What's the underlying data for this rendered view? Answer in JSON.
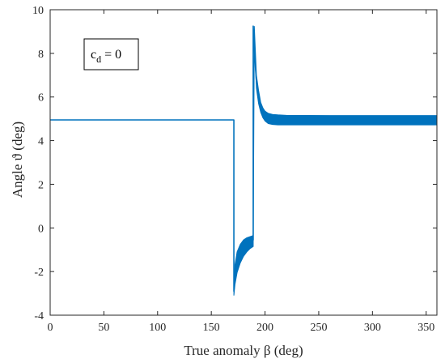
{
  "chart_data": {
    "type": "line",
    "xlabel": "True anomaly β (deg)",
    "ylabel": "Angle ϑ (deg)",
    "xlim": [
      0,
      360
    ],
    "ylim": [
      -4,
      10
    ],
    "xticks": [
      0,
      50,
      100,
      150,
      200,
      250,
      300,
      350
    ],
    "yticks": [
      -4,
      -2,
      0,
      2,
      4,
      6,
      8,
      10
    ],
    "xtick_labels": [
      "0",
      "50",
      "100",
      "150",
      "200",
      "250",
      "300",
      "350"
    ],
    "ytick_labels": [
      "-4",
      "-2",
      "0",
      "2",
      "4",
      "6",
      "8",
      "10"
    ],
    "grid": false,
    "annotation": {
      "main": "c",
      "sub": "d",
      "rest": " = 0"
    },
    "color": "#0072BD",
    "series": [
      {
        "x": [
          0,
          171,
          171,
          172,
          174,
          177,
          180,
          183,
          186,
          189,
          189,
          190,
          191,
          192,
          194,
          196,
          198,
          200,
          203,
          207,
          212,
          220,
          360
        ],
        "y": [
          4.95,
          4.95,
          -2.9,
          -2.2,
          -1.6,
          -1.15,
          -0.9,
          -0.75,
          -0.65,
          -0.55,
          9.25,
          8.3,
          7.4,
          6.7,
          6.0,
          5.55,
          5.3,
          5.15,
          5.05,
          5.0,
          4.98,
          4.96,
          4.96
        ]
      }
    ],
    "band": {
      "x": [
        171,
        172,
        174,
        177,
        180,
        183,
        186,
        189,
        190,
        192,
        194,
        196,
        198,
        200,
        203,
        207,
        212,
        220,
        260,
        300,
        360
      ],
      "upper": [
        -2.9,
        -1.7,
        -1.1,
        -0.75,
        -0.55,
        -0.45,
        -0.4,
        -0.35,
        9.25,
        7.0,
        6.3,
        5.75,
        5.5,
        5.35,
        5.25,
        5.2,
        5.18,
        5.16,
        5.15,
        5.15,
        5.15
      ],
      "lower": [
        -3.1,
        -2.6,
        -2.05,
        -1.6,
        -1.3,
        -1.1,
        -0.95,
        -0.85,
        8.6,
        6.4,
        5.7,
        5.3,
        5.05,
        4.9,
        4.78,
        4.74,
        4.72,
        4.72,
        4.72,
        4.72,
        4.72
      ]
    }
  }
}
